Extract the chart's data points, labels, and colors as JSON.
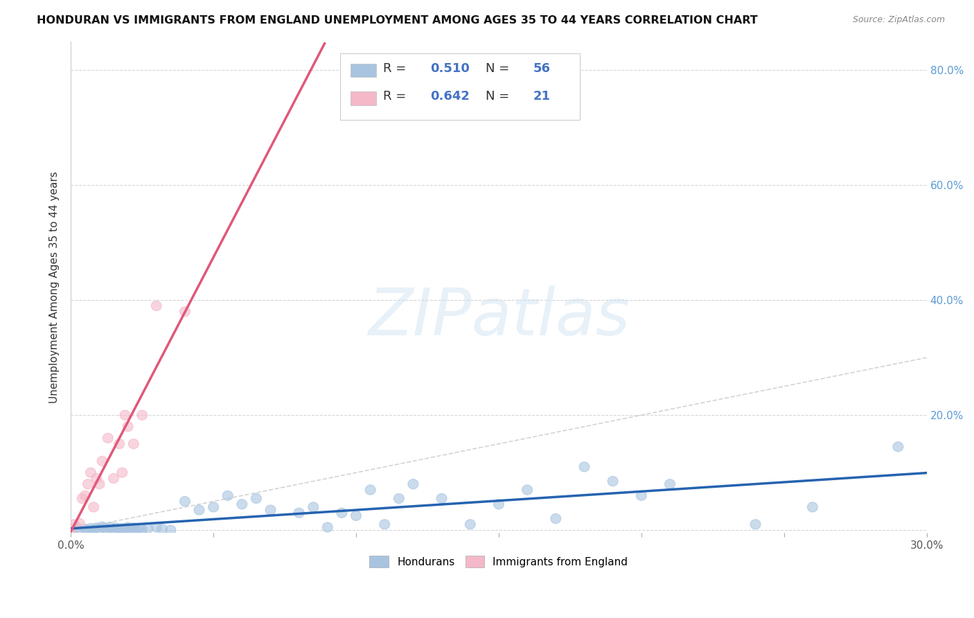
{
  "title": "HONDURAN VS IMMIGRANTS FROM ENGLAND UNEMPLOYMENT AMONG AGES 35 TO 44 YEARS CORRELATION CHART",
  "source": "Source: ZipAtlas.com",
  "ylabel": "Unemployment Among Ages 35 to 44 years",
  "xlim": [
    0.0,
    0.3
  ],
  "ylim": [
    -0.005,
    0.85
  ],
  "blue_R": 0.51,
  "blue_N": 56,
  "pink_R": 0.642,
  "pink_N": 21,
  "blue_color": "#a8c4e0",
  "pink_color": "#f4b8c8",
  "blue_line_color": "#2563b0",
  "pink_line_color": "#e05878",
  "diagonal_color": "#c8c8c8",
  "grid_color": "#cccccc",
  "hondurans_x": [
    0.0,
    0.002,
    0.003,
    0.005,
    0.006,
    0.007,
    0.008,
    0.009,
    0.01,
    0.011,
    0.012,
    0.013,
    0.014,
    0.015,
    0.016,
    0.017,
    0.018,
    0.019,
    0.02,
    0.021,
    0.022,
    0.023,
    0.024,
    0.025,
    0.027,
    0.03,
    0.032,
    0.035,
    0.04,
    0.045,
    0.05,
    0.055,
    0.06,
    0.065,
    0.07,
    0.08,
    0.085,
    0.09,
    0.095,
    0.1,
    0.105,
    0.11,
    0.115,
    0.12,
    0.13,
    0.14,
    0.15,
    0.16,
    0.17,
    0.18,
    0.19,
    0.2,
    0.21,
    0.24,
    0.26,
    0.29
  ],
  "hondurans_y": [
    0.0,
    0.005,
    0.0,
    0.002,
    0.0,
    0.003,
    0.001,
    0.004,
    0.002,
    0.006,
    0.003,
    0.001,
    0.005,
    0.002,
    0.004,
    0.0,
    0.003,
    0.001,
    0.005,
    0.002,
    0.004,
    0.0,
    0.003,
    0.001,
    0.003,
    0.005,
    0.002,
    0.0,
    0.05,
    0.035,
    0.04,
    0.06,
    0.045,
    0.055,
    0.035,
    0.03,
    0.04,
    0.005,
    0.03,
    0.025,
    0.07,
    0.01,
    0.055,
    0.08,
    0.055,
    0.01,
    0.045,
    0.07,
    0.02,
    0.11,
    0.085,
    0.06,
    0.08,
    0.01,
    0.04,
    0.145
  ],
  "england_x": [
    0.0,
    0.001,
    0.003,
    0.004,
    0.005,
    0.006,
    0.007,
    0.008,
    0.009,
    0.01,
    0.011,
    0.013,
    0.015,
    0.017,
    0.018,
    0.019,
    0.02,
    0.022,
    0.025,
    0.03,
    0.04
  ],
  "england_y": [
    0.0,
    0.01,
    0.012,
    0.055,
    0.06,
    0.08,
    0.1,
    0.04,
    0.09,
    0.08,
    0.12,
    0.16,
    0.09,
    0.15,
    0.1,
    0.2,
    0.18,
    0.15,
    0.2,
    0.39,
    0.38
  ]
}
